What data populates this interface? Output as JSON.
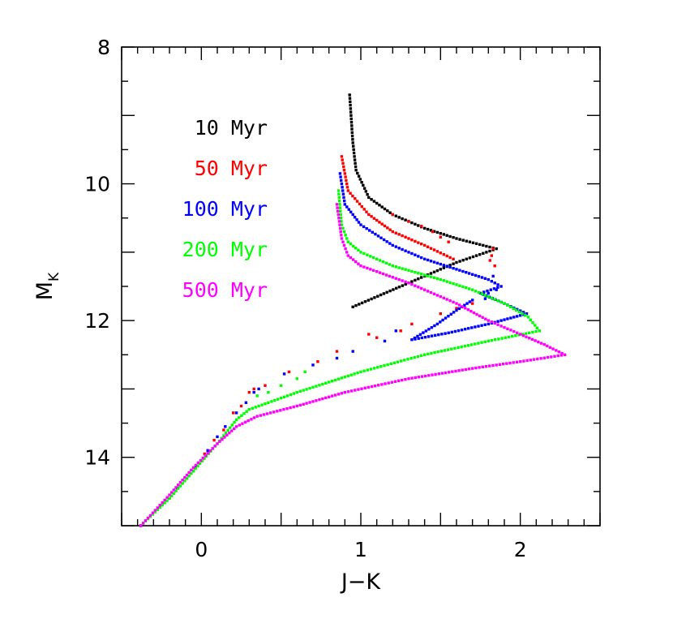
{
  "chart_data": {
    "type": "scatter",
    "xlabel": "J−K",
    "ylabel_main": "M",
    "ylabel_sub": "K",
    "xlim": [
      -0.5,
      2.5
    ],
    "ylim": [
      15,
      8
    ],
    "y_inverted": true,
    "grid": false,
    "legend_position": "top-left",
    "x_ticks": [
      {
        "v": 0,
        "label": "0"
      },
      {
        "v": 1,
        "label": "1"
      },
      {
        "v": 2,
        "label": "2"
      }
    ],
    "y_ticks": [
      {
        "v": 8,
        "label": "8"
      },
      {
        "v": 10,
        "label": "10"
      },
      {
        "v": 12,
        "label": "12"
      },
      {
        "v": 14,
        "label": "14"
      }
    ],
    "series": [
      {
        "name": "10 Myr",
        "color": "#000000",
        "track": [
          [
            0.93,
            8.7
          ],
          [
            0.95,
            9.4
          ],
          [
            0.97,
            9.8
          ],
          [
            1.05,
            10.2
          ],
          [
            1.2,
            10.45
          ],
          [
            1.4,
            10.65
          ],
          [
            1.6,
            10.8
          ],
          [
            1.85,
            10.95
          ],
          [
            1.6,
            11.15
          ],
          [
            1.3,
            11.45
          ],
          [
            0.95,
            11.8
          ]
        ],
        "dots": []
      },
      {
        "name": "50 Myr",
        "color": "#ff0000",
        "track": [
          [
            0.88,
            9.6
          ],
          [
            0.92,
            10.1
          ],
          [
            1.05,
            10.45
          ],
          [
            1.2,
            10.7
          ],
          [
            1.4,
            10.9
          ],
          [
            1.58,
            11.1
          ]
        ],
        "dots": [
          [
            1.2,
            10.45
          ],
          [
            1.3,
            10.55
          ],
          [
            1.38,
            10.62
          ],
          [
            1.45,
            10.7
          ],
          [
            1.5,
            10.78
          ],
          [
            1.55,
            10.85
          ],
          [
            1.83,
            10.95
          ],
          [
            1.82,
            11.05
          ],
          [
            1.81,
            11.12
          ],
          [
            1.84,
            11.2
          ],
          [
            1.7,
            11.75
          ],
          [
            1.6,
            11.82
          ],
          [
            1.5,
            11.9
          ],
          [
            1.32,
            12.05
          ],
          [
            1.25,
            12.15
          ],
          [
            1.1,
            12.25
          ],
          [
            1.05,
            12.2
          ],
          [
            0.85,
            12.45
          ],
          [
            0.73,
            12.6
          ],
          [
            0.55,
            12.75
          ],
          [
            0.4,
            12.95
          ],
          [
            0.33,
            13.0
          ],
          [
            0.3,
            13.05
          ],
          [
            0.25,
            13.25
          ],
          [
            0.2,
            13.35
          ],
          [
            0.14,
            13.6
          ],
          [
            0.08,
            13.75
          ],
          [
            0.02,
            13.95
          ],
          [
            -0.05,
            14.2
          ],
          [
            -0.2,
            14.6
          ],
          [
            -0.38,
            15.0
          ]
        ]
      },
      {
        "name": "100 Myr",
        "color": "#0000ff",
        "track": [
          [
            0.87,
            9.85
          ],
          [
            0.9,
            10.3
          ],
          [
            1.0,
            10.6
          ],
          [
            1.2,
            10.9
          ],
          [
            1.4,
            11.1
          ],
          [
            1.6,
            11.25
          ],
          [
            1.8,
            11.4
          ],
          [
            1.88,
            11.5
          ],
          [
            1.75,
            11.6
          ],
          [
            1.9,
            11.75
          ],
          [
            2.04,
            11.9
          ],
          [
            1.8,
            12.05
          ],
          [
            1.55,
            12.18
          ],
          [
            1.32,
            12.28
          ],
          [
            1.48,
            12.05
          ],
          [
            1.6,
            11.85
          ],
          [
            1.7,
            11.7
          ]
        ],
        "dots": [
          [
            1.83,
            11.35
          ],
          [
            1.84,
            11.45
          ],
          [
            1.85,
            11.55
          ],
          [
            1.8,
            11.6
          ],
          [
            1.78,
            11.68
          ],
          [
            1.22,
            12.15
          ],
          [
            1.15,
            12.3
          ],
          [
            0.95,
            12.45
          ],
          [
            0.85,
            12.55
          ],
          [
            0.7,
            12.65
          ],
          [
            0.52,
            12.78
          ],
          [
            0.36,
            13.0
          ],
          [
            0.33,
            13.05
          ],
          [
            0.28,
            13.2
          ],
          [
            0.22,
            13.35
          ],
          [
            0.15,
            13.55
          ],
          [
            0.1,
            13.7
          ],
          [
            0.04,
            13.9
          ],
          [
            -0.04,
            14.15
          ],
          [
            -0.15,
            14.45
          ],
          [
            -0.38,
            15.0
          ]
        ]
      },
      {
        "name": "200 Myr",
        "color": "#00ff00",
        "track": [
          [
            0.86,
            10.1
          ],
          [
            0.88,
            10.6
          ],
          [
            0.92,
            10.85
          ],
          [
            1.0,
            11.0
          ],
          [
            1.2,
            11.2
          ],
          [
            1.5,
            11.4
          ],
          [
            1.7,
            11.55
          ],
          [
            1.9,
            11.75
          ],
          [
            2.05,
            11.95
          ],
          [
            2.12,
            12.15
          ],
          [
            1.8,
            12.3
          ],
          [
            1.4,
            12.5
          ],
          [
            1.0,
            12.75
          ],
          [
            0.6,
            13.05
          ],
          [
            0.3,
            13.3
          ],
          [
            0.22,
            13.45
          ],
          [
            0.1,
            13.8
          ],
          [
            -0.05,
            14.2
          ],
          [
            -0.2,
            14.6
          ],
          [
            -0.38,
            15.0
          ]
        ],
        "dots": [
          [
            0.65,
            12.75
          ],
          [
            0.6,
            12.85
          ],
          [
            0.5,
            12.95
          ],
          [
            0.42,
            13.05
          ],
          [
            0.35,
            13.1
          ]
        ]
      },
      {
        "name": "500 Myr",
        "color": "#ff00ff",
        "track": [
          [
            0.85,
            10.3
          ],
          [
            0.88,
            10.8
          ],
          [
            0.92,
            11.05
          ],
          [
            1.0,
            11.2
          ],
          [
            1.3,
            11.45
          ],
          [
            1.6,
            11.75
          ],
          [
            1.8,
            12.0
          ],
          [
            2.0,
            12.2
          ],
          [
            2.15,
            12.35
          ],
          [
            2.28,
            12.5
          ],
          [
            2.0,
            12.6
          ],
          [
            1.7,
            12.7
          ],
          [
            1.3,
            12.85
          ],
          [
            0.9,
            13.05
          ],
          [
            0.6,
            13.25
          ],
          [
            0.35,
            13.4
          ],
          [
            0.22,
            13.55
          ],
          [
            0.1,
            13.8
          ],
          [
            -0.05,
            14.15
          ],
          [
            -0.2,
            14.55
          ],
          [
            -0.38,
            15.0
          ]
        ],
        "dots": []
      }
    ]
  }
}
